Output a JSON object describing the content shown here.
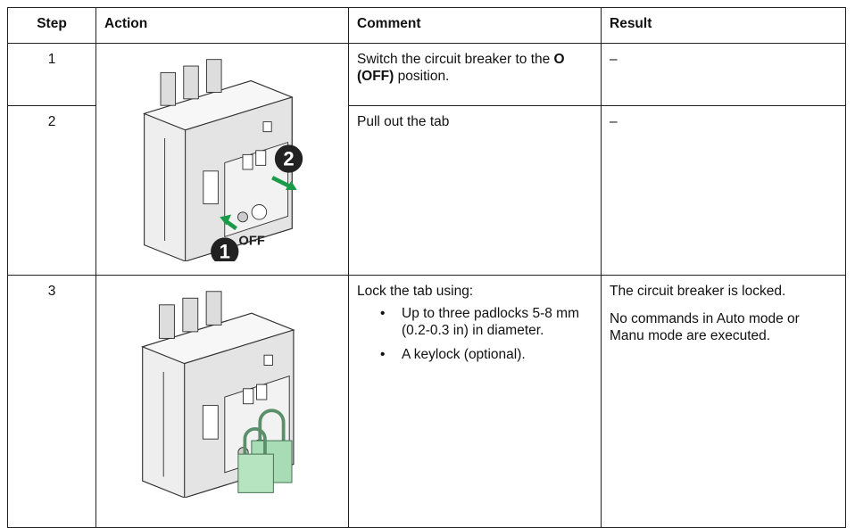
{
  "table": {
    "header": [
      "Step",
      "Action",
      "Comment",
      "Result"
    ],
    "rows": [
      {
        "step": "1",
        "comment": {
          "before": "Switch the circuit breaker to the ",
          "bold": "O (OFF)",
          "after": " position."
        },
        "result": "–"
      },
      {
        "step": "2",
        "comment": "Pull out the tab",
        "result": "–"
      },
      {
        "step": "3",
        "comment": {
          "intro": "Lock the tab using:",
          "bullets": [
            "Up to three padlocks 5-8 mm (0.2-0.3 in) in diameter.",
            "A keylock (optional)."
          ]
        },
        "result": [
          "The circuit breaker is locked.",
          "No commands in Auto mode or Manu mode are executed."
        ]
      }
    ]
  },
  "illustration": {
    "callouts": [
      "1",
      "2"
    ],
    "label": "OFF"
  }
}
